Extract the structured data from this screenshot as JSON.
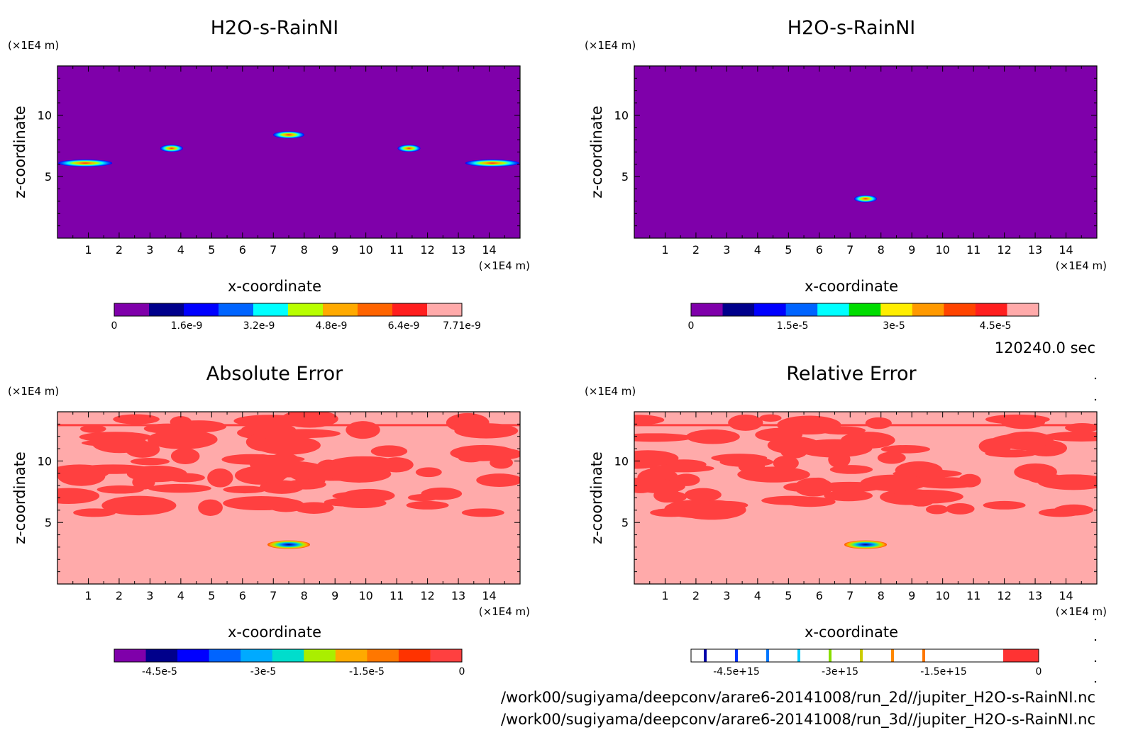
{
  "chart_data": [
    {
      "type": "heatmap",
      "title": "H2O-s-RainNI",
      "xlabel": "x-coordinate",
      "ylabel": "z-coordinate",
      "x_unit": "(×1E4 m)",
      "y_unit": "(×1E4 m)",
      "xlim": [
        0,
        15
      ],
      "ylim": [
        0,
        14
      ],
      "x_ticks": [
        "1",
        "2",
        "3",
        "4",
        "5",
        "6",
        "7",
        "8",
        "9",
        "10",
        "11",
        "12",
        "13",
        "14"
      ],
      "y_ticks": [
        "5",
        "10"
      ],
      "background_color": "#7f00aa",
      "features": [
        {
          "x": 0.9,
          "z": 6.1
        },
        {
          "x": 3.7,
          "z": 7.3
        },
        {
          "x": 7.5,
          "z": 8.4
        },
        {
          "x": 11.4,
          "z": 7.3
        },
        {
          "x": 14.1,
          "z": 6.1
        }
      ],
      "colorbar": {
        "labels": [
          "0",
          "1.6e-9",
          "3.2e-9",
          "4.8e-9",
          "6.4e-9",
          "7.71e-9"
        ],
        "colors": [
          "#7f00aa",
          "#00008b",
          "#0000ff",
          "#0064ff",
          "#00ffff",
          "#b8ff00",
          "#ffaa00",
          "#ff6400",
          "#ff1e1e",
          "#ffaaaa"
        ]
      }
    },
    {
      "type": "heatmap",
      "title": "H2O-s-RainNI",
      "xlabel": "x-coordinate",
      "ylabel": "z-coordinate",
      "x_unit": "(×1E4 m)",
      "y_unit": "(×1E4 m)",
      "xlim": [
        0,
        15
      ],
      "ylim": [
        0,
        14
      ],
      "x_ticks": [
        "1",
        "2",
        "3",
        "4",
        "5",
        "6",
        "7",
        "8",
        "9",
        "10",
        "11",
        "12",
        "13",
        "14"
      ],
      "y_ticks": [
        "5",
        "10"
      ],
      "background_color": "#7f00aa",
      "features": [
        {
          "x": 7.5,
          "z": 3.2
        }
      ],
      "colorbar": {
        "labels": [
          "0",
          "1.5e-5",
          "3e-5",
          "4.5e-5"
        ],
        "colors": [
          "#7f00aa",
          "#00008b",
          "#0000ff",
          "#0064ff",
          "#00ffff",
          "#00dd00",
          "#ffee00",
          "#ff9900",
          "#ff4400",
          "#ff1e1e",
          "#ffaaaa"
        ]
      }
    },
    {
      "type": "heatmap",
      "title": "Absolute Error",
      "xlabel": "x-coordinate",
      "ylabel": "z-coordinate",
      "x_unit": "(×1E4 m)",
      "y_unit": "(×1E4 m)",
      "xlim": [
        0,
        15
      ],
      "ylim": [
        0,
        14
      ],
      "x_ticks": [
        "1",
        "2",
        "3",
        "4",
        "5",
        "6",
        "7",
        "8",
        "9",
        "10",
        "11",
        "12",
        "13",
        "14"
      ],
      "y_ticks": [
        "5",
        "10"
      ],
      "background_color": "#ffaaaa",
      "features": [
        {
          "x": 7.5,
          "z": 3.2
        }
      ],
      "colorbar": {
        "labels": [
          "-4.5e-5",
          "-3e-5",
          "-1.5e-5",
          "0"
        ],
        "colors": [
          "#7f00aa",
          "#00008b",
          "#0000ff",
          "#0064ff",
          "#00aaff",
          "#00ddcc",
          "#aaee00",
          "#ffaa00",
          "#ff7700",
          "#ff3300",
          "#ff4040"
        ]
      }
    },
    {
      "type": "heatmap",
      "title": "Relative Error",
      "xlabel": "x-coordinate",
      "ylabel": "z-coordinate",
      "x_unit": "(×1E4 m)",
      "y_unit": "(×1E4 m)",
      "xlim": [
        0,
        15
      ],
      "ylim": [
        0,
        14
      ],
      "x_ticks": [
        "1",
        "2",
        "3",
        "4",
        "5",
        "6",
        "7",
        "8",
        "9",
        "10",
        "11",
        "12",
        "13",
        "14"
      ],
      "y_ticks": [
        "5",
        "10"
      ],
      "background_color": "#ffaaaa",
      "features": [
        {
          "x": 7.5,
          "z": 3.2
        }
      ],
      "colorbar": {
        "labels": [
          "-4.5e+15",
          "-3e+15",
          "-1.5e+15",
          "0"
        ],
        "colors": [
          "#0000aa",
          "#0033ff",
          "#0077ff",
          "#00ccff",
          "#88dd00",
          "#cccc00",
          "#ff8800",
          "#ff7700",
          "#ff3333"
        ]
      }
    }
  ],
  "time_label": "120240.0 sec",
  "footer_lines": [
    "/work00/sugiyama/deepconv/arare6-20141008/run_2d//jupiter_H2O-s-RainNI.nc",
    "/work00/sugiyama/deepconv/arare6-20141008/run_3d//jupiter_H2O-s-RainNI.nc"
  ]
}
